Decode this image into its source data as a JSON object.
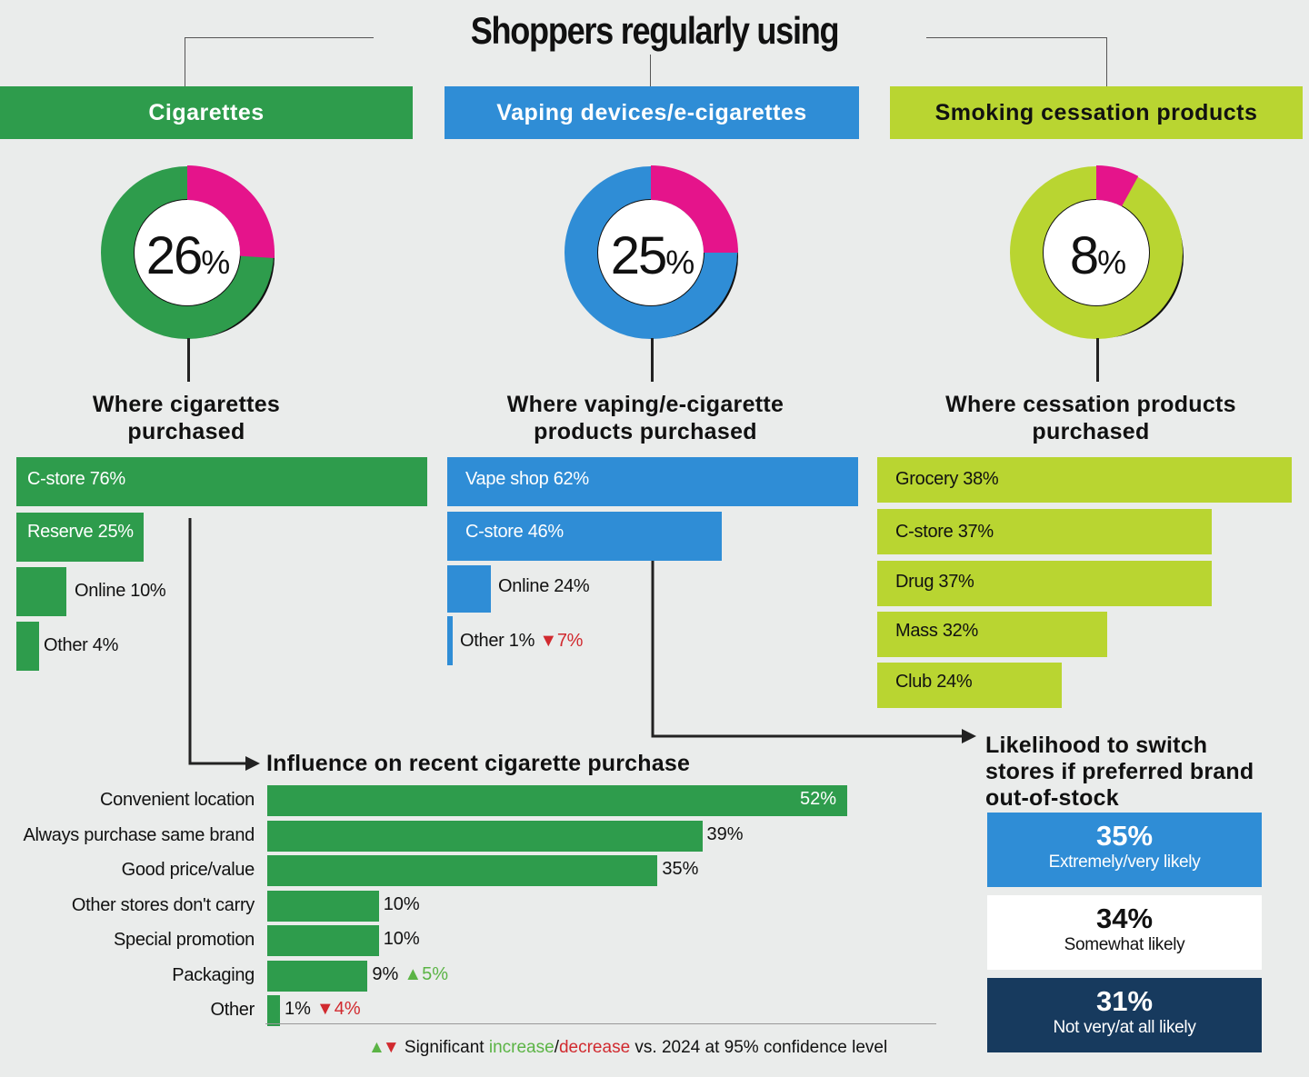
{
  "title": "Shoppers regularly using",
  "colors": {
    "cigarettes": "#2e9c4c",
    "vaping": "#2f8dd6",
    "cessation": "#b9d531",
    "highlight": "#e5148b",
    "dark_navy": "#173a5e",
    "increase": "#5bb445",
    "decrease": "#d12a2f"
  },
  "chart_data": [
    {
      "type": "pie",
      "header": "Cigarettes",
      "value": 26,
      "value_text": "26",
      "unit": "%",
      "color": "#2e9c4c"
    },
    {
      "type": "pie",
      "header": "Vaping devices/e-cigarettes",
      "value": 25,
      "value_text": "25",
      "unit": "%",
      "color": "#2f8dd6"
    },
    {
      "type": "pie",
      "header": "Smoking cessation products",
      "value": 8,
      "value_text": "8",
      "unit": "%",
      "color": "#b9d531"
    },
    {
      "type": "bar",
      "title": "Where cigarettes purchased",
      "categories": [
        "C-store",
        "Reserve",
        "Online",
        "Other"
      ],
      "values": [
        76,
        25,
        10,
        4
      ],
      "labels": [
        "C-store 76%",
        "Reserve 25%",
        "Online 10%",
        "Other 4%"
      ]
    },
    {
      "type": "bar",
      "title": "Where vaping/e-cigarette products purchased",
      "categories": [
        "Vape shop",
        "C-store",
        "Online",
        "Other"
      ],
      "values": [
        62,
        46,
        24,
        1
      ],
      "labels": [
        "Vape shop 62%",
        "C-store 46%",
        "Online 24%",
        "Other 1%"
      ],
      "changes": [
        "",
        "",
        "",
        "▼7%"
      ]
    },
    {
      "type": "bar",
      "title": "Where cessation products purchased",
      "categories": [
        "Grocery",
        "C-store",
        "Drug",
        "Mass",
        "Club"
      ],
      "values": [
        38,
        37,
        37,
        32,
        24
      ],
      "labels": [
        "Grocery 38%",
        "C-store 37%",
        "Drug 37%",
        "Mass 32%",
        "Club 24%"
      ]
    },
    {
      "type": "bar",
      "title": "Influence on recent cigarette purchase",
      "categories": [
        "Convenient location",
        "Always purchase same brand",
        "Good price/value",
        "Other stores don't carry",
        "Special promotion",
        "Packaging",
        "Other"
      ],
      "values": [
        52,
        39,
        35,
        10,
        10,
        9,
        1
      ],
      "labels": [
        "52%",
        "39%",
        "35%",
        "10%",
        "10%",
        "9%",
        "1%"
      ],
      "changes": [
        "",
        "",
        "",
        "",
        "",
        "▲5%",
        "▼4%"
      ]
    },
    {
      "type": "table",
      "title": "Likelihood to switch stores if preferred brand out-of-stock",
      "rows": [
        {
          "value": "35%",
          "label": "Extremely/very likely"
        },
        {
          "value": "34%",
          "label": "Somewhat likely"
        },
        {
          "value": "31%",
          "label": "Not very/at all likely"
        }
      ]
    }
  ],
  "legend": {
    "arrows": "▲▼",
    "prefix": "Significant",
    "increase": "increase",
    "sep": "/",
    "decrease": "decrease",
    "suffix": "vs. 2024 at 95% confidence level"
  }
}
